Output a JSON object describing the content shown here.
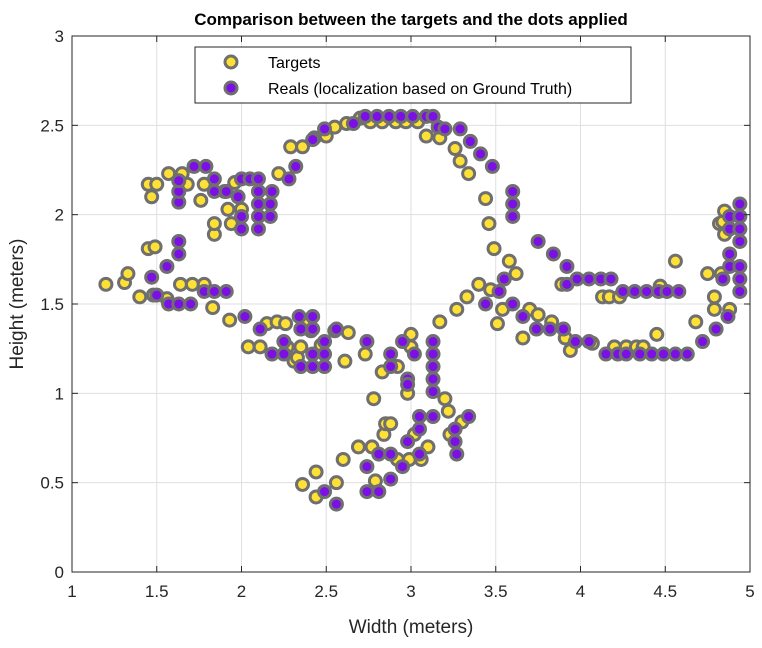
{
  "chart_data": {
    "type": "scatter",
    "title": "Comparison between the targets and the dots applied",
    "xlabel": "Width (meters)",
    "ylabel": "Height (meters)",
    "xlim": [
      1,
      5
    ],
    "ylim": [
      0,
      3
    ],
    "x_ticks": [
      1,
      1.5,
      2,
      2.5,
      3,
      3.5,
      4,
      4.5,
      5
    ],
    "x_tick_labels": [
      "1",
      "1.5",
      "2",
      "2.5",
      "3",
      "3.5",
      "4",
      "4.5",
      "5"
    ],
    "y_ticks": [
      0,
      0.5,
      1,
      1.5,
      2,
      2.5,
      3
    ],
    "y_tick_labels": [
      "0",
      "0.5",
      "1",
      "1.5",
      "2",
      "2.5",
      "3"
    ],
    "grid": true,
    "legend_position": "top-center",
    "marker_edge_color": "#6f6f6f",
    "series": [
      {
        "name": "Targets",
        "color": "#ffe135",
        "points": [
          [
            1.2,
            1.61
          ],
          [
            1.31,
            1.62
          ],
          [
            1.33,
            1.67
          ],
          [
            1.4,
            1.54
          ],
          [
            1.45,
            1.81
          ],
          [
            1.45,
            2.17
          ],
          [
            1.47,
            2.1
          ],
          [
            1.48,
            1.55
          ],
          [
            1.49,
            1.82
          ],
          [
            1.5,
            2.17
          ],
          [
            1.56,
            1.53
          ],
          [
            1.57,
            2.23
          ],
          [
            1.64,
            1.61
          ],
          [
            1.65,
            2.23
          ],
          [
            1.68,
            2.17
          ],
          [
            1.71,
            1.61
          ],
          [
            1.76,
            2.08
          ],
          [
            1.78,
            1.61
          ],
          [
            1.78,
            2.17
          ],
          [
            1.83,
            1.48
          ],
          [
            1.84,
            1.89
          ],
          [
            1.84,
            1.95
          ],
          [
            1.9,
            2.13
          ],
          [
            1.92,
            2.03
          ],
          [
            1.93,
            1.41
          ],
          [
            1.94,
            1.95
          ],
          [
            1.96,
            2.18
          ],
          [
            2.0,
            2.03
          ],
          [
            2.04,
            1.26
          ],
          [
            2.11,
            1.26
          ],
          [
            2.15,
            1.39
          ],
          [
            2.21,
            1.4
          ],
          [
            2.22,
            2.23
          ],
          [
            2.26,
            1.39
          ],
          [
            2.27,
            1.26
          ],
          [
            2.29,
            2.38
          ],
          [
            2.31,
            1.18
          ],
          [
            2.33,
            1.2
          ],
          [
            2.35,
            1.26
          ],
          [
            2.36,
            2.38
          ],
          [
            2.36,
            0.49
          ],
          [
            2.37,
            1.4
          ],
          [
            2.41,
            1.35
          ],
          [
            2.43,
            2.43
          ],
          [
            2.44,
            0.42
          ],
          [
            2.44,
            0.56
          ],
          [
            2.47,
            1.27
          ],
          [
            2.5,
            2.44
          ],
          [
            2.55,
            1.35
          ],
          [
            2.55,
            2.49
          ],
          [
            2.56,
            0.5
          ],
          [
            2.6,
            0.63
          ],
          [
            2.61,
            1.18
          ],
          [
            2.62,
            2.51
          ],
          [
            2.63,
            1.34
          ],
          [
            2.69,
            0.7
          ],
          [
            2.7,
            2.54
          ],
          [
            2.73,
            1.22
          ],
          [
            2.76,
            2.52
          ],
          [
            2.77,
            0.7
          ],
          [
            2.78,
            0.97
          ],
          [
            2.79,
            0.51
          ],
          [
            2.83,
            1.12
          ],
          [
            2.83,
            2.52
          ],
          [
            2.84,
            0.77
          ],
          [
            2.85,
            0.83
          ],
          [
            2.88,
            0.83
          ],
          [
            2.91,
            2.52
          ],
          [
            2.92,
            0.63
          ],
          [
            2.92,
            1.15
          ],
          [
            2.97,
            2.52
          ],
          [
            2.98,
            1.0
          ],
          [
            2.99,
            0.63
          ],
          [
            3.0,
            1.26
          ],
          [
            3.0,
            1.33
          ],
          [
            3.02,
            0.77
          ],
          [
            3.04,
            2.52
          ],
          [
            3.06,
            0.63
          ],
          [
            3.09,
            2.44
          ],
          [
            3.1,
            0.7
          ],
          [
            3.17,
            2.43
          ],
          [
            3.17,
            1.4
          ],
          [
            3.2,
            0.97
          ],
          [
            3.22,
            0.9
          ],
          [
            3.23,
            0.77
          ],
          [
            3.26,
            2.37
          ],
          [
            3.27,
            1.47
          ],
          [
            3.29,
            2.3
          ],
          [
            3.3,
            0.84
          ],
          [
            3.33,
            1.54
          ],
          [
            3.34,
            2.23
          ],
          [
            3.4,
            1.61
          ],
          [
            3.44,
            2.09
          ],
          [
            3.46,
            1.95
          ],
          [
            3.47,
            1.58
          ],
          [
            3.49,
            1.81
          ],
          [
            3.51,
            1.39
          ],
          [
            3.54,
            1.47
          ],
          [
            3.58,
            1.74
          ],
          [
            3.62,
            1.67
          ],
          [
            3.66,
            1.31
          ],
          [
            3.7,
            1.47
          ],
          [
            3.75,
            1.44
          ],
          [
            3.83,
            1.4
          ],
          [
            3.89,
            1.61
          ],
          [
            3.91,
            1.31
          ],
          [
            3.94,
            1.24
          ],
          [
            4.07,
            1.28
          ],
          [
            4.13,
            1.54
          ],
          [
            4.17,
            1.54
          ],
          [
            4.2,
            1.26
          ],
          [
            4.23,
            1.54
          ],
          [
            4.27,
            1.26
          ],
          [
            4.33,
            1.26
          ],
          [
            4.37,
            1.26
          ],
          [
            4.45,
            1.33
          ],
          [
            4.47,
            1.6
          ],
          [
            4.56,
            1.74
          ],
          [
            4.68,
            1.4
          ],
          [
            4.75,
            1.67
          ],
          [
            4.79,
            1.47
          ],
          [
            4.79,
            1.54
          ],
          [
            4.82,
            1.95
          ],
          [
            4.83,
            1.67
          ],
          [
            4.84,
            1.96
          ],
          [
            4.85,
            1.89
          ],
          [
            4.85,
            2.02
          ],
          [
            4.88,
            1.47
          ]
        ]
      },
      {
        "name": "Reals (localization based on Ground Truth)",
        "color": "#7b0fe6",
        "points": [
          [
            1.47,
            1.65
          ],
          [
            1.5,
            1.55
          ],
          [
            1.56,
            1.71
          ],
          [
            1.57,
            1.5
          ],
          [
            1.63,
            1.5
          ],
          [
            1.63,
            2.07
          ],
          [
            1.63,
            2.13
          ],
          [
            1.63,
            2.19
          ],
          [
            1.63,
            1.85
          ],
          [
            1.63,
            1.78
          ],
          [
            1.7,
            1.5
          ],
          [
            1.72,
            2.27
          ],
          [
            1.79,
            2.27
          ],
          [
            1.78,
            1.57
          ],
          [
            1.84,
            1.57
          ],
          [
            1.84,
            2.13
          ],
          [
            1.84,
            2.2
          ],
          [
            1.91,
            1.57
          ],
          [
            1.91,
            2.13
          ],
          [
            1.98,
            2.1
          ],
          [
            2.0,
            2.2
          ],
          [
            2.0,
            1.99
          ],
          [
            2.0,
            1.92
          ],
          [
            2.02,
            1.43
          ],
          [
            2.05,
            2.2
          ],
          [
            2.1,
            2.2
          ],
          [
            2.1,
            2.13
          ],
          [
            2.1,
            1.99
          ],
          [
            2.1,
            1.92
          ],
          [
            2.1,
            2.06
          ],
          [
            2.11,
            1.36
          ],
          [
            2.17,
            2.06
          ],
          [
            2.17,
            1.99
          ],
          [
            2.18,
            2.13
          ],
          [
            2.18,
            1.22
          ],
          [
            2.25,
            1.22
          ],
          [
            2.25,
            1.29
          ],
          [
            2.28,
            2.2
          ],
          [
            2.32,
            2.27
          ],
          [
            2.34,
            1.43
          ],
          [
            2.35,
            1.36
          ],
          [
            2.35,
            1.15
          ],
          [
            2.42,
            1.43
          ],
          [
            2.42,
            1.36
          ],
          [
            2.42,
            1.22
          ],
          [
            2.42,
            1.15
          ],
          [
            2.42,
            2.42
          ],
          [
            2.49,
            2.48
          ],
          [
            2.49,
            1.15
          ],
          [
            2.49,
            1.22
          ],
          [
            2.49,
            1.29
          ],
          [
            2.49,
            0.45
          ],
          [
            2.56,
            0.38
          ],
          [
            2.56,
            1.36
          ],
          [
            2.66,
            2.51
          ],
          [
            2.73,
            2.55
          ],
          [
            2.74,
            1.29
          ],
          [
            2.74,
            0.45
          ],
          [
            2.74,
            0.59
          ],
          [
            2.8,
            2.55
          ],
          [
            2.81,
            0.45
          ],
          [
            2.81,
            0.66
          ],
          [
            2.87,
            2.55
          ],
          [
            2.88,
            1.22
          ],
          [
            2.88,
            1.15
          ],
          [
            2.88,
            0.66
          ],
          [
            2.88,
            0.52
          ],
          [
            2.94,
            2.55
          ],
          [
            2.95,
            1.29
          ],
          [
            2.95,
            0.59
          ],
          [
            2.98,
            1.08
          ],
          [
            2.98,
            1.05
          ],
          [
            2.98,
            0.73
          ],
          [
            3.01,
            2.55
          ],
          [
            3.02,
            1.22
          ],
          [
            3.05,
            0.87
          ],
          [
            3.05,
            0.8
          ],
          [
            3.05,
            0.66
          ],
          [
            3.09,
            2.55
          ],
          [
            3.13,
            2.55
          ],
          [
            3.13,
            1.29
          ],
          [
            3.13,
            1.22
          ],
          [
            3.13,
            1.15
          ],
          [
            3.13,
            1.08
          ],
          [
            3.13,
            1.01
          ],
          [
            3.13,
            0.87
          ],
          [
            3.16,
            2.49
          ],
          [
            3.2,
            2.48
          ],
          [
            3.26,
            0.8
          ],
          [
            3.26,
            0.73
          ],
          [
            3.27,
            0.66
          ],
          [
            3.29,
            2.48
          ],
          [
            3.34,
            0.87
          ],
          [
            3.35,
            2.41
          ],
          [
            3.41,
            2.34
          ],
          [
            3.44,
            1.5
          ],
          [
            3.48,
            2.27
          ],
          [
            3.52,
            1.57
          ],
          [
            3.55,
            1.64
          ],
          [
            3.6,
            2.13
          ],
          [
            3.6,
            2.06
          ],
          [
            3.6,
            1.99
          ],
          [
            3.6,
            1.5
          ],
          [
            3.66,
            1.43
          ],
          [
            3.74,
            1.36
          ],
          [
            3.75,
            1.85
          ],
          [
            3.82,
            1.36
          ],
          [
            3.84,
            1.78
          ],
          [
            3.9,
            1.36
          ],
          [
            3.92,
            1.71
          ],
          [
            3.97,
            1.29
          ],
          [
            3.92,
            1.61
          ],
          [
            3.98,
            1.64
          ],
          [
            4.05,
            1.64
          ],
          [
            4.05,
            1.29
          ],
          [
            4.12,
            1.64
          ],
          [
            4.15,
            1.22
          ],
          [
            4.18,
            1.64
          ],
          [
            4.22,
            1.22
          ],
          [
            4.25,
            1.57
          ],
          [
            4.27,
            1.22
          ],
          [
            4.32,
            1.57
          ],
          [
            4.35,
            1.22
          ],
          [
            4.39,
            1.57
          ],
          [
            4.42,
            1.22
          ],
          [
            4.46,
            1.57
          ],
          [
            4.49,
            1.22
          ],
          [
            4.51,
            1.57
          ],
          [
            4.56,
            1.22
          ],
          [
            4.58,
            1.57
          ],
          [
            4.63,
            1.22
          ],
          [
            4.72,
            1.29
          ],
          [
            4.8,
            1.36
          ],
          [
            4.87,
            1.43
          ],
          [
            4.88,
            1.99
          ],
          [
            4.88,
            1.92
          ],
          [
            4.88,
            1.78
          ],
          [
            4.88,
            1.71
          ],
          [
            4.94,
            2.06
          ],
          [
            4.94,
            1.99
          ],
          [
            4.94,
            1.92
          ],
          [
            4.94,
            1.85
          ],
          [
            4.94,
            1.71
          ],
          [
            4.94,
            1.64
          ],
          [
            4.94,
            1.57
          ],
          [
            4.84,
            1.64
          ]
        ]
      }
    ]
  }
}
